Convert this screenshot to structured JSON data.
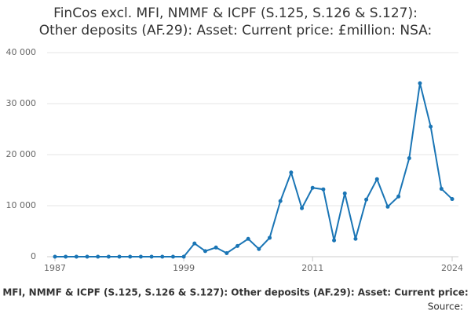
{
  "chart_data": {
    "type": "line",
    "title": [
      "FinCos excl. MFI, NMMF & ICPF (S.125, S.126 & S.127):",
      "Other deposits (AF.29): Asset: Current price: £million: NSA:"
    ],
    "x": [
      1987,
      1988,
      1989,
      1990,
      1991,
      1992,
      1993,
      1994,
      1995,
      1996,
      1997,
      1998,
      1999,
      2000,
      2001,
      2002,
      2003,
      2004,
      2005,
      2006,
      2007,
      2008,
      2009,
      2010,
      2011,
      2012,
      2013,
      2014,
      2015,
      2016,
      2017,
      2018,
      2019,
      2020,
      2021,
      2022,
      2023,
      2024
    ],
    "series": [
      {
        "name": "MFI, NMMF & ICPF (S.125, S.126 & S.127): Other deposits (AF.29): Asset: Current price:",
        "color": "#1a75b5",
        "values": [
          0,
          0,
          0,
          0,
          0,
          0,
          0,
          0,
          0,
          0,
          0,
          0,
          0,
          2600,
          1100,
          1800,
          700,
          2100,
          3500,
          1500,
          3700,
          10900,
          16500,
          9500,
          13500,
          13200,
          3200,
          12400,
          3500,
          11200,
          15200,
          9800,
          11800,
          19300,
          34000,
          25500,
          13300,
          11300
        ]
      }
    ],
    "xlim": [
      1987,
      2024
    ],
    "xticks": [
      1987,
      1999,
      2011,
      2024
    ],
    "ylim": [
      0,
      40000
    ],
    "yticks": [
      0,
      {
        "value": 10000,
        "label": "10 000"
      },
      {
        "value": 20000,
        "label": "20 000"
      },
      {
        "value": 30000,
        "label": "30 000"
      },
      {
        "value": 40000,
        "label": "40 000"
      }
    ],
    "grid": true,
    "source": "Source:"
  }
}
